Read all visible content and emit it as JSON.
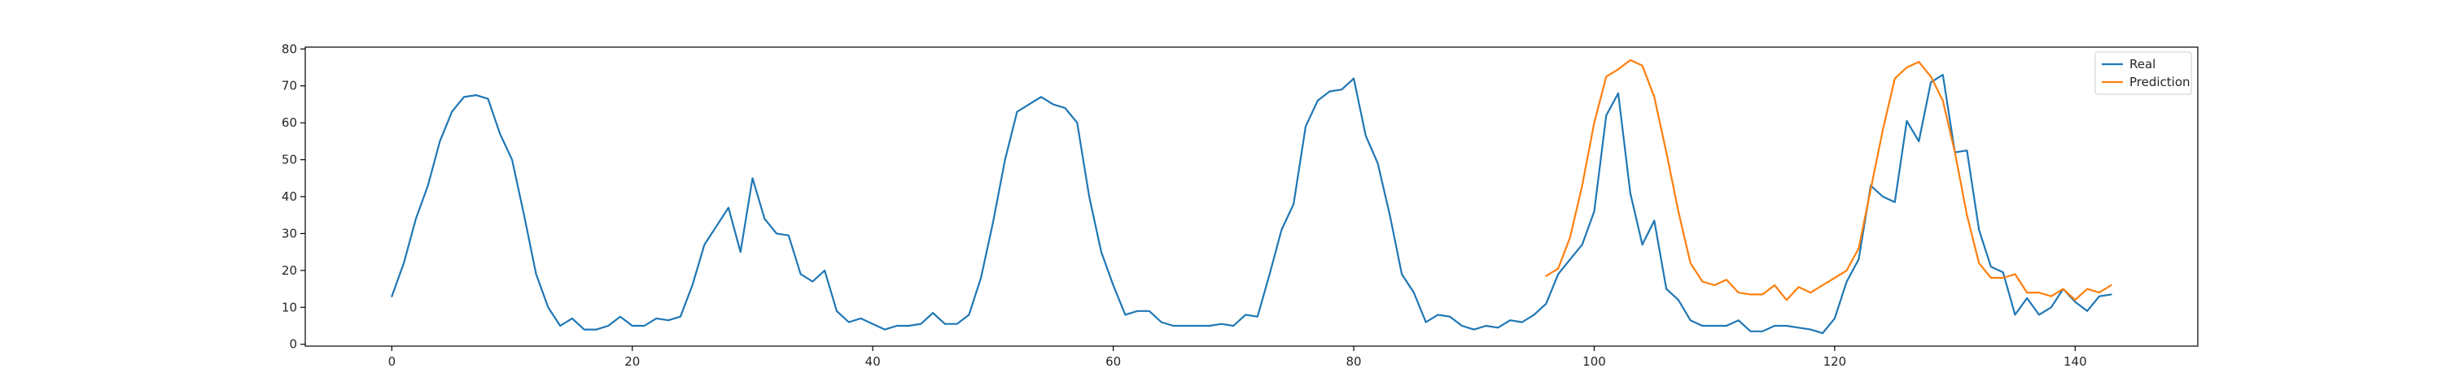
{
  "chart_data": {
    "type": "line",
    "title": "",
    "xlabel": "",
    "ylabel": "",
    "xlim": [
      -7.2,
      150.2
    ],
    "ylim": [
      -0.5,
      80.5
    ],
    "xticks": [
      0,
      20,
      40,
      60,
      80,
      100,
      120,
      140
    ],
    "yticks": [
      0,
      10,
      20,
      30,
      40,
      50,
      60,
      70,
      80
    ],
    "grid": false,
    "legend_position": "top-right",
    "series": [
      {
        "name": "Real",
        "color": "#1f77b4",
        "x_start": 0,
        "values": [
          13,
          22,
          34,
          43,
          55,
          63,
          67,
          67.5,
          66.5,
          57,
          50,
          35,
          19,
          10,
          5,
          7,
          4,
          4,
          5,
          7.5,
          5,
          5,
          7,
          6.5,
          7.5,
          16,
          27,
          32,
          37,
          25,
          45,
          34,
          30,
          29.5,
          19,
          17,
          20,
          9,
          6,
          7,
          5.5,
          4,
          5,
          5,
          5.5,
          8.5,
          5.5,
          5.5,
          8,
          18,
          33,
          50,
          63,
          65,
          67,
          65,
          64,
          60,
          40,
          25,
          16,
          8,
          9,
          9,
          6,
          5,
          5,
          5,
          5,
          5.5,
          5,
          8,
          7.5,
          19,
          31,
          38,
          59,
          66,
          68.5,
          69,
          72,
          56.5,
          49,
          35,
          19,
          14,
          6,
          8,
          7.5,
          5,
          4,
          5,
          4.5,
          6.5,
          6,
          8,
          11,
          19,
          23,
          27,
          36,
          62,
          68,
          41,
          27,
          33.5,
          15,
          12,
          6.5,
          5,
          5,
          5,
          6.5,
          3.5,
          3.5,
          5,
          5,
          4.5,
          4,
          3,
          7,
          17,
          23,
          43,
          40,
          38.5,
          60.5,
          55,
          71,
          73,
          52,
          52.5,
          31,
          21,
          19.5,
          8,
          12.5,
          8,
          10,
          15,
          11.5,
          9,
          13,
          13.5
        ]
      },
      {
        "name": "Prediction",
        "color": "#ff7f0e",
        "x_start": 96,
        "values": [
          18.5,
          20.5,
          29,
          43,
          60,
          72.5,
          74.5,
          77,
          75.5,
          67,
          52,
          36,
          22,
          17,
          16,
          17.5,
          14,
          13.5,
          13.5,
          16,
          12,
          15.5,
          14,
          16,
          18,
          20,
          26,
          42,
          58,
          72,
          75,
          76.5,
          72.5,
          66,
          52,
          35,
          22,
          18,
          18,
          19,
          14,
          14,
          13,
          15,
          12,
          15,
          14,
          16
        ]
      }
    ]
  }
}
